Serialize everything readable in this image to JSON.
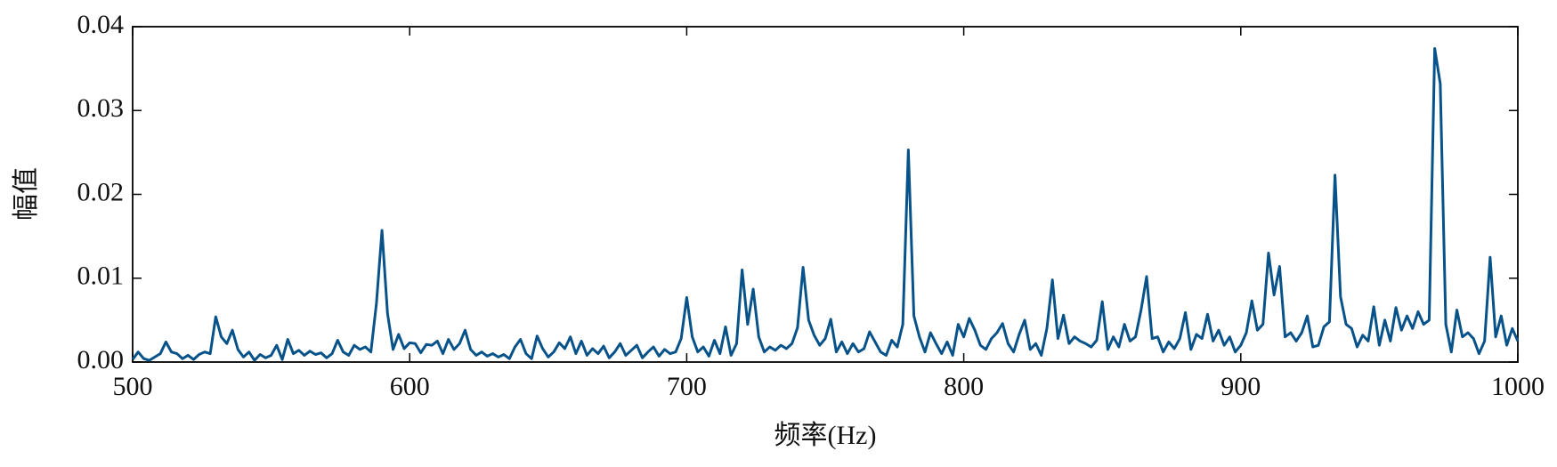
{
  "chart_data": {
    "type": "line",
    "xlabel": "频率(Hz)",
    "ylabel": "幅值",
    "xlim": [
      500,
      1000
    ],
    "ylim": [
      0,
      0.04
    ],
    "xticks": [
      500,
      600,
      700,
      800,
      900,
      1000
    ],
    "yticks": [
      {
        "value": 0,
        "label": "0.00"
      },
      {
        "value": 0.01,
        "label": "0.01"
      },
      {
        "value": 0.02,
        "label": "0.02"
      },
      {
        "value": 0.03,
        "label": "0.03"
      },
      {
        "value": 0.04,
        "label": "0.04"
      }
    ],
    "x": [
      500,
      502,
      504,
      506,
      508,
      510,
      512,
      514,
      516,
      518,
      520,
      522,
      524,
      526,
      528,
      530,
      532,
      534,
      536,
      538,
      540,
      542,
      544,
      546,
      548,
      550,
      552,
      554,
      556,
      558,
      560,
      562,
      564,
      566,
      568,
      570,
      572,
      574,
      576,
      578,
      580,
      582,
      584,
      586,
      588,
      590,
      592,
      594,
      596,
      598,
      600,
      602,
      604,
      606,
      608,
      610,
      612,
      614,
      616,
      618,
      620,
      622,
      624,
      626,
      628,
      630,
      632,
      634,
      636,
      638,
      640,
      642,
      644,
      646,
      648,
      650,
      652,
      654,
      656,
      658,
      660,
      662,
      664,
      666,
      668,
      670,
      672,
      674,
      676,
      678,
      680,
      682,
      684,
      686,
      688,
      690,
      692,
      694,
      696,
      698,
      700,
      702,
      704,
      706,
      708,
      710,
      712,
      714,
      716,
      718,
      720,
      722,
      724,
      726,
      728,
      730,
      732,
      734,
      736,
      738,
      740,
      742,
      744,
      746,
      748,
      750,
      752,
      754,
      756,
      758,
      760,
      762,
      764,
      766,
      768,
      770,
      772,
      774,
      776,
      778,
      780,
      782,
      784,
      786,
      788,
      790,
      792,
      794,
      796,
      798,
      800,
      802,
      804,
      806,
      808,
      810,
      812,
      814,
      816,
      818,
      820,
      822,
      824,
      826,
      828,
      830,
      832,
      834,
      836,
      838,
      840,
      842,
      844,
      846,
      848,
      850,
      852,
      854,
      856,
      858,
      860,
      862,
      864,
      866,
      868,
      870,
      872,
      874,
      876,
      878,
      880,
      882,
      884,
      886,
      888,
      890,
      892,
      894,
      896,
      898,
      900,
      902,
      904,
      906,
      908,
      910,
      912,
      914,
      916,
      918,
      920,
      922,
      924,
      926,
      928,
      930,
      932,
      934,
      936,
      938,
      940,
      942,
      944,
      946,
      948,
      950,
      952,
      954,
      956,
      958,
      960,
      962,
      964,
      966,
      968,
      970,
      972,
      974,
      976,
      978,
      980,
      982,
      984,
      986,
      988,
      990,
      992,
      994,
      996,
      998,
      1000
    ],
    "series": [
      {
        "color": "#08528a",
        "values": [
          0.0003,
          0.0012,
          0.0004,
          0.0002,
          0.0006,
          0.001,
          0.0024,
          0.0012,
          0.001,
          0.0004,
          0.0008,
          0.0003,
          0.0009,
          0.0012,
          0.001,
          0.0054,
          0.003,
          0.0022,
          0.0038,
          0.0015,
          0.0006,
          0.0012,
          0.0002,
          0.0009,
          0.0005,
          0.0008,
          0.002,
          0.0003,
          0.0027,
          0.001,
          0.0014,
          0.0008,
          0.0013,
          0.0009,
          0.0011,
          0.0005,
          0.001,
          0.0026,
          0.0012,
          0.0008,
          0.002,
          0.0015,
          0.0018,
          0.0012,
          0.007,
          0.0157,
          0.0058,
          0.0015,
          0.0033,
          0.0016,
          0.0023,
          0.0022,
          0.0011,
          0.0021,
          0.002,
          0.0025,
          0.001,
          0.0027,
          0.0015,
          0.0022,
          0.0038,
          0.0015,
          0.0008,
          0.0012,
          0.0007,
          0.001,
          0.0006,
          0.0009,
          0.0004,
          0.0018,
          0.0027,
          0.001,
          0.0004,
          0.0031,
          0.0016,
          0.0006,
          0.0012,
          0.0023,
          0.0016,
          0.003,
          0.001,
          0.0025,
          0.0008,
          0.0016,
          0.001,
          0.0019,
          0.0005,
          0.0012,
          0.0022,
          0.0008,
          0.0014,
          0.002,
          0.0005,
          0.0012,
          0.0018,
          0.0007,
          0.0015,
          0.001,
          0.0012,
          0.0028,
          0.0077,
          0.003,
          0.0012,
          0.0018,
          0.0007,
          0.0026,
          0.001,
          0.0042,
          0.0008,
          0.0022,
          0.011,
          0.0045,
          0.0087,
          0.003,
          0.0012,
          0.0018,
          0.0014,
          0.002,
          0.0016,
          0.0022,
          0.0041,
          0.0113,
          0.005,
          0.0032,
          0.002,
          0.0028,
          0.0051,
          0.0012,
          0.0024,
          0.001,
          0.0022,
          0.0012,
          0.0016,
          0.0036,
          0.0024,
          0.0012,
          0.0008,
          0.0026,
          0.0018,
          0.0045,
          0.0253,
          0.0055,
          0.003,
          0.0012,
          0.0035,
          0.0022,
          0.001,
          0.0024,
          0.0008,
          0.0045,
          0.003,
          0.0052,
          0.0038,
          0.002,
          0.0015,
          0.0028,
          0.0035,
          0.0046,
          0.0022,
          0.0012,
          0.0033,
          0.005,
          0.0015,
          0.0022,
          0.0008,
          0.004,
          0.0098,
          0.0028,
          0.0056,
          0.0022,
          0.003,
          0.0025,
          0.0022,
          0.0018,
          0.0026,
          0.0072,
          0.0015,
          0.003,
          0.0018,
          0.0045,
          0.0025,
          0.003,
          0.0062,
          0.0102,
          0.0028,
          0.003,
          0.0012,
          0.0024,
          0.0016,
          0.0028,
          0.0059,
          0.0015,
          0.0033,
          0.0028,
          0.0057,
          0.0025,
          0.0038,
          0.002,
          0.003,
          0.0012,
          0.002,
          0.0035,
          0.0073,
          0.0038,
          0.0045,
          0.013,
          0.008,
          0.0114,
          0.003,
          0.0035,
          0.0025,
          0.0035,
          0.0055,
          0.0018,
          0.002,
          0.0042,
          0.0048,
          0.0223,
          0.0078,
          0.0045,
          0.004,
          0.0018,
          0.0032,
          0.0025,
          0.0066,
          0.002,
          0.005,
          0.0025,
          0.0065,
          0.0038,
          0.0055,
          0.004,
          0.006,
          0.0045,
          0.005,
          0.0374,
          0.0332,
          0.0045,
          0.0012,
          0.0062,
          0.003,
          0.0035,
          0.0028,
          0.001,
          0.0025,
          0.0125,
          0.003,
          0.0055,
          0.002,
          0.004,
          0.0025
        ]
      }
    ]
  }
}
